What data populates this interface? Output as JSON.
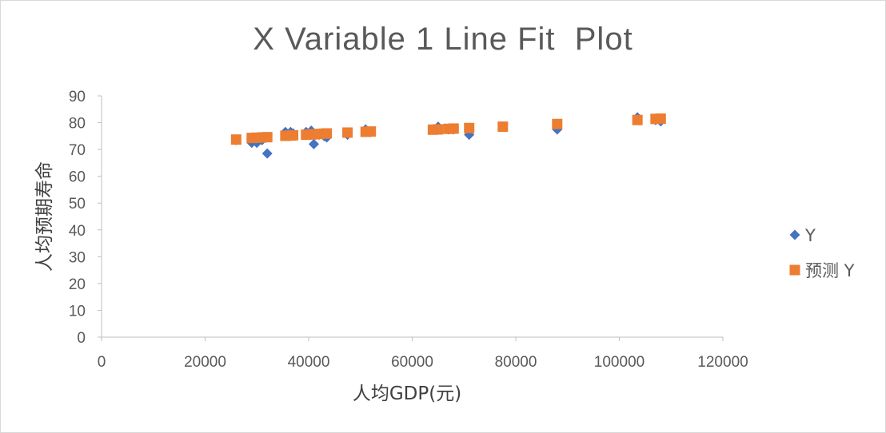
{
  "chart_data": {
    "type": "scatter",
    "title": "X Variable 1 Line Fit  Plot",
    "xlabel": "人均GDP(元)",
    "ylabel": "人均预期寿命",
    "xlim": [
      0,
      120000
    ],
    "ylim": [
      0,
      90
    ],
    "xticks": [
      0,
      20000,
      40000,
      60000,
      80000,
      100000,
      120000
    ],
    "yticks": [
      0,
      10,
      20,
      30,
      40,
      50,
      60,
      70,
      80,
      90
    ],
    "grid": false,
    "legend_position": "right",
    "series": [
      {
        "name": "Y",
        "marker": "diamond",
        "color": "#4472C4",
        "points": [
          [
            26000,
            73.5
          ],
          [
            29000,
            72.5
          ],
          [
            30000,
            72.5
          ],
          [
            31000,
            73.5
          ],
          [
            32000,
            68.5
          ],
          [
            35500,
            76.5
          ],
          [
            36500,
            76.5
          ],
          [
            37000,
            76
          ],
          [
            39500,
            76.5
          ],
          [
            40500,
            77
          ],
          [
            41000,
            72
          ],
          [
            42000,
            75.5
          ],
          [
            43000,
            75
          ],
          [
            43500,
            74.5
          ],
          [
            47500,
            75.5
          ],
          [
            51000,
            77.5
          ],
          [
            52000,
            76.5
          ],
          [
            64000,
            77.5
          ],
          [
            65000,
            78.5
          ],
          [
            67000,
            77.5
          ],
          [
            68000,
            77.5
          ],
          [
            71000,
            75.5
          ],
          [
            88000,
            77.5
          ],
          [
            103500,
            82
          ],
          [
            107000,
            81
          ],
          [
            108000,
            80.5
          ]
        ]
      },
      {
        "name": "预测 Y",
        "marker": "square",
        "color": "#ED7D31",
        "points": [
          [
            26000,
            73.7
          ],
          [
            29000,
            74.3
          ],
          [
            30000,
            74.4
          ],
          [
            31000,
            74.5
          ],
          [
            32000,
            74.6
          ],
          [
            35500,
            75.1
          ],
          [
            36500,
            75.2
          ],
          [
            37000,
            75.3
          ],
          [
            39500,
            75.5
          ],
          [
            40500,
            75.6
          ],
          [
            41000,
            75.7
          ],
          [
            42000,
            75.8
          ],
          [
            43000,
            75.9
          ],
          [
            43500,
            76
          ],
          [
            47500,
            76.3
          ],
          [
            51000,
            76.6
          ],
          [
            52000,
            76.7
          ],
          [
            64000,
            77.4
          ],
          [
            65000,
            77.5
          ],
          [
            67000,
            77.7
          ],
          [
            68000,
            77.8
          ],
          [
            71000,
            78
          ],
          [
            77500,
            78.5
          ],
          [
            88000,
            79.5
          ],
          [
            103500,
            81
          ],
          [
            107000,
            81.4
          ],
          [
            108000,
            81.5
          ]
        ]
      }
    ]
  }
}
